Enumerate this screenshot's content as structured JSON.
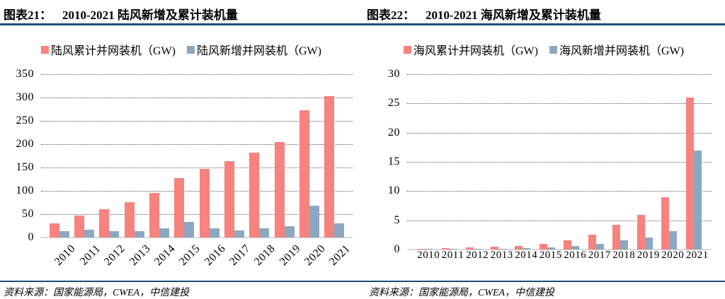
{
  "page": {
    "background": "#FFFFFF",
    "rule_color": "#1B4E79"
  },
  "panels": [
    {
      "caption_label": "图表21：",
      "caption_title": "2010-2021 陆风新增及累计装机量",
      "source": "资料来源：国家能源局，CWEA，中信建投"
    },
    {
      "caption_label": "图表22：",
      "caption_title": "2010-2021 海风新增及累计装机量",
      "source": "资料来源：国家能源局，CWEA，中信建投"
    }
  ],
  "chart_data": [
    {
      "type": "bar",
      "title": "2010-2021 陆风新增及累计装机量",
      "categories": [
        "2010",
        "2011",
        "2012",
        "2013",
        "2014",
        "2015",
        "2016",
        "2017",
        "2018",
        "2019",
        "2020",
        "2021"
      ],
      "series": [
        {
          "name": "陆风累计并网装机（GW)",
          "color": "#F8827E",
          "values": [
            30,
            47,
            61,
            76,
            96,
            128,
            147,
            163,
            182,
            205,
            272,
            303
          ]
        },
        {
          "name": "陆风新增并网装机（GW)",
          "color": "#8CA8C1",
          "values": [
            14,
            16,
            14,
            14,
            20,
            33,
            19,
            15,
            20,
            24,
            68,
            30
          ]
        }
      ],
      "xlabel": "",
      "ylabel": "",
      "ylim": [
        0,
        350
      ],
      "ytick_step": 50,
      "grid": true,
      "gridline_style": "dotted",
      "legend_position": "top",
      "xlabel_rotation": -45
    },
    {
      "type": "bar",
      "title": "2010-2021 海风新增及累计装机量",
      "categories": [
        "2010",
        "2011",
        "2012",
        "2013",
        "2014",
        "2015",
        "2016",
        "2017",
        "2018",
        "2019",
        "2020",
        "2021"
      ],
      "series": [
        {
          "name": "海风累计并网装机（GW)",
          "color": "#F8827E",
          "values": [
            0.15,
            0.26,
            0.39,
            0.45,
            0.66,
            1.0,
            1.6,
            2.6,
            4.2,
            5.9,
            9.0,
            26.0
          ]
        },
        {
          "name": "海风新增并网装机（GW)",
          "color": "#8CA8C1",
          "values": [
            0.1,
            0.1,
            0.13,
            0.1,
            0.2,
            0.35,
            0.6,
            1.0,
            1.6,
            2.0,
            3.1,
            16.9
          ]
        }
      ],
      "xlabel": "",
      "ylabel": "",
      "ylim": [
        0,
        30
      ],
      "ytick_step": 5,
      "grid": true,
      "gridline_style": "dotted",
      "legend_position": "top",
      "xlabel_rotation": 0
    }
  ]
}
